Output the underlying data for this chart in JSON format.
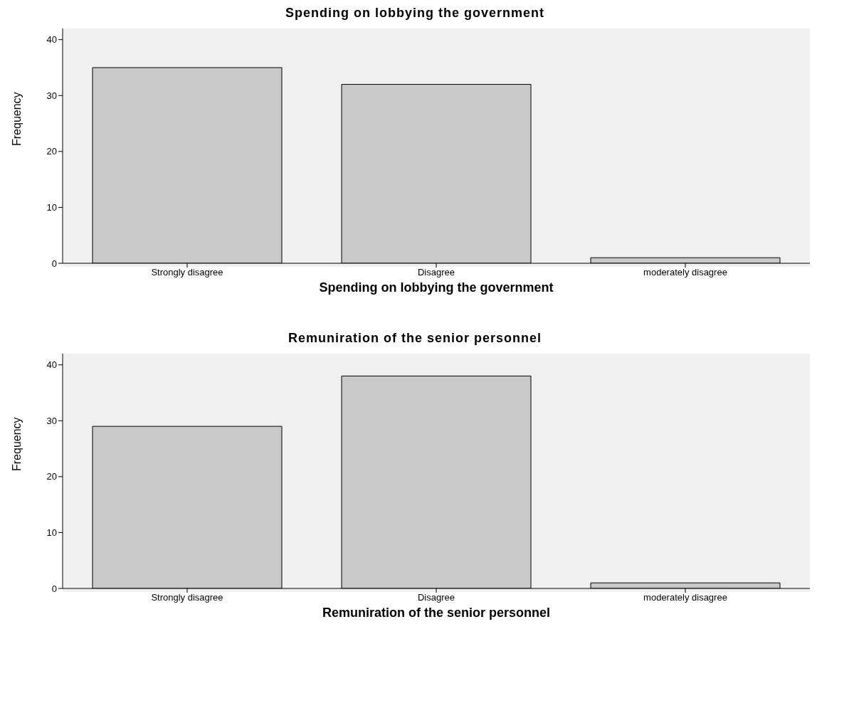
{
  "chart_data": [
    {
      "type": "bar",
      "title": "Spending on lobbying the government",
      "xlabel": "Spending on lobbying the government",
      "ylabel": "Frequency",
      "categories": [
        "Strongly disagree",
        "Disagree",
        "moderately disagree"
      ],
      "values": [
        35,
        32,
        1
      ],
      "color": "#c8c8c8",
      "ylim": [
        0,
        42
      ],
      "yticks": [
        0,
        10,
        20,
        30,
        40
      ],
      "grid": false,
      "legend": false
    },
    {
      "type": "bar",
      "title": "Remuniration of the senior personnel",
      "xlabel": "Remuniration of the senior personnel",
      "ylabel": "Frequency",
      "categories": [
        "Strongly disagree",
        "Disagree",
        "moderately disagree"
      ],
      "values": [
        29,
        38,
        1
      ],
      "color": "#c8c8c8",
      "ylim": [
        0,
        42
      ],
      "yticks": [
        0,
        10,
        20,
        30,
        40
      ],
      "grid": false,
      "legend": false
    }
  ]
}
